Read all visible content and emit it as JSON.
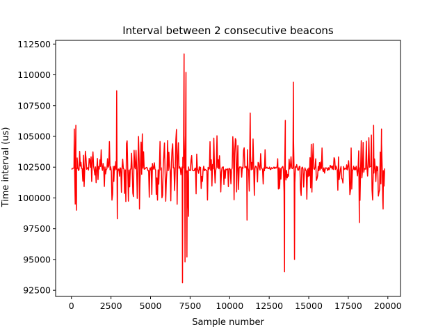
{
  "chart_data": {
    "type": "line",
    "title": "Interval between 2 consecutive beacons",
    "xlabel": "Sample number",
    "ylabel": "Time interval (us)",
    "xlim": [
      -1000,
      20800
    ],
    "ylim": [
      92000,
      112800
    ],
    "xticks": [
      0,
      2500,
      5000,
      7500,
      10000,
      12500,
      15000,
      17500,
      20000
    ],
    "yticks": [
      92500,
      95000,
      97500,
      100000,
      102500,
      105000,
      107500,
      110000,
      112500
    ],
    "grid": false,
    "line_color": "#ff0000",
    "series": [
      {
        "baseline": 102400,
        "x_range": [
          0,
          19800
        ],
        "events": [
          {
            "x": 50,
            "y": 102400
          },
          {
            "x": 180,
            "y": 105600
          },
          {
            "x": 240,
            "y": 99500
          },
          {
            "x": 280,
            "y": 105900
          },
          {
            "x": 320,
            "y": 99000
          },
          {
            "x": 360,
            "y": 102400
          },
          {
            "x": 2860,
            "y": 108700
          },
          {
            "x": 2900,
            "y": 98300
          },
          {
            "x": 4300,
            "y": 99100
          },
          {
            "x": 7020,
            "y": 93100
          },
          {
            "x": 7120,
            "y": 111700
          },
          {
            "x": 7180,
            "y": 94800
          },
          {
            "x": 7240,
            "y": 110200
          },
          {
            "x": 7300,
            "y": 95200
          },
          {
            "x": 7400,
            "y": 98500
          },
          {
            "x": 11100,
            "y": 98200
          },
          {
            "x": 11300,
            "y": 106900
          },
          {
            "x": 13470,
            "y": 94000
          },
          {
            "x": 13520,
            "y": 106300
          },
          {
            "x": 14030,
            "y": 109400
          },
          {
            "x": 14100,
            "y": 95000
          },
          {
            "x": 18200,
            "y": 98000
          },
          {
            "x": 19100,
            "y": 105900
          },
          {
            "x": 19600,
            "y": 105600
          },
          {
            "x": 19700,
            "y": 99100
          }
        ],
        "active_segments": [
          {
            "start": 360,
            "end": 1200,
            "amp": 1500
          },
          {
            "start": 1200,
            "end": 2400,
            "amp": 1800
          },
          {
            "start": 2400,
            "end": 4000,
            "amp": 2700
          },
          {
            "start": 4000,
            "end": 6000,
            "amp": 3000
          },
          {
            "start": 6000,
            "end": 7000,
            "amp": 3200
          },
          {
            "start": 7000,
            "end": 7500,
            "amp": 3800
          },
          {
            "start": 7500,
            "end": 9500,
            "amp": 2700
          },
          {
            "start": 9500,
            "end": 10200,
            "amp": 1700
          },
          {
            "start": 10200,
            "end": 11700,
            "amp": 2700
          },
          {
            "start": 11700,
            "end": 12300,
            "amp": 1700
          },
          {
            "start": 12300,
            "end": 13000,
            "amp": 120
          },
          {
            "start": 13000,
            "end": 13500,
            "amp": 2300
          },
          {
            "start": 13500,
            "end": 16200,
            "amp": 2500
          },
          {
            "start": 16200,
            "end": 17200,
            "amp": 1800
          },
          {
            "start": 17200,
            "end": 17500,
            "amp": 300
          },
          {
            "start": 17500,
            "end": 19800,
            "amp": 2800
          }
        ]
      }
    ]
  }
}
